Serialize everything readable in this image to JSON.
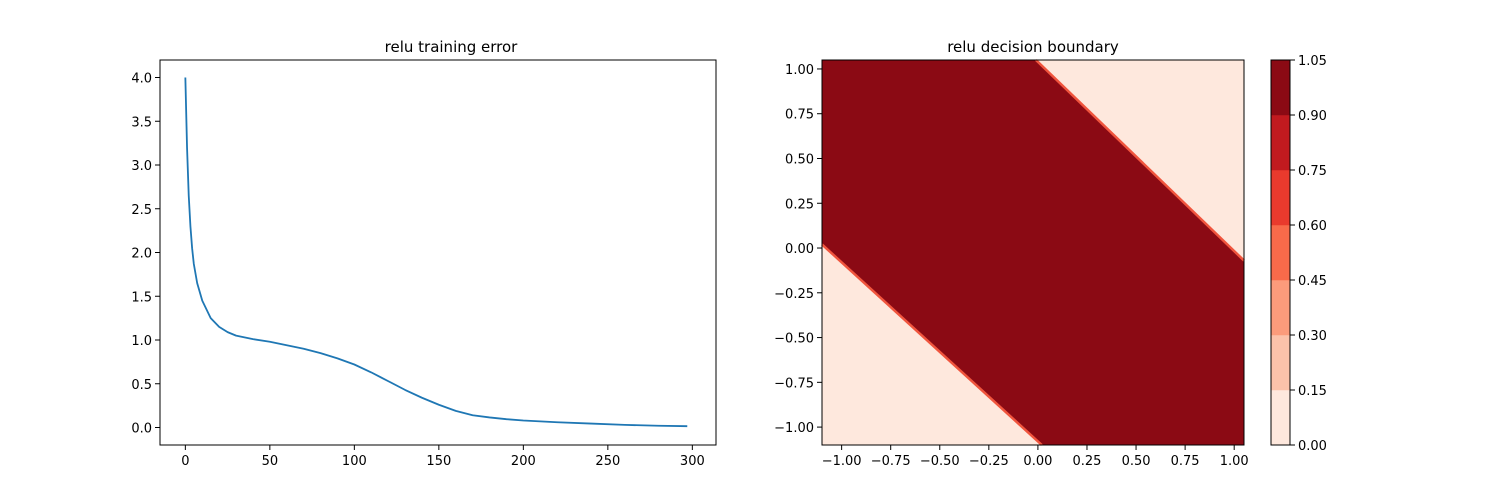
{
  "chart_data": [
    {
      "type": "line",
      "title": "relu training error",
      "xlabel": "",
      "ylabel": "",
      "xlim": [
        -15,
        314
      ],
      "ylim": [
        -0.2,
        4.2
      ],
      "xticks": [
        0,
        50,
        100,
        150,
        200,
        250,
        300
      ],
      "xtick_labels": [
        "0",
        "50",
        "100",
        "150",
        "200",
        "250",
        "300"
      ],
      "yticks": [
        0.0,
        0.5,
        1.0,
        1.5,
        2.0,
        2.5,
        3.0,
        3.5,
        4.0
      ],
      "ytick_labels": [
        "0.0",
        "0.5",
        "1.0",
        "1.5",
        "2.0",
        "2.5",
        "3.0",
        "3.5",
        "4.0"
      ],
      "grid": false,
      "series": [
        {
          "color": "#1f77b4",
          "x": [
            0,
            1,
            2,
            3,
            4,
            5,
            7,
            10,
            15,
            20,
            25,
            30,
            35,
            40,
            50,
            60,
            70,
            80,
            90,
            100,
            110,
            120,
            130,
            140,
            150,
            160,
            170,
            180,
            190,
            200,
            220,
            240,
            260,
            280,
            297
          ],
          "y": [
            4.0,
            3.2,
            2.65,
            2.3,
            2.05,
            1.87,
            1.65,
            1.45,
            1.25,
            1.15,
            1.09,
            1.05,
            1.03,
            1.01,
            0.98,
            0.94,
            0.9,
            0.85,
            0.79,
            0.72,
            0.63,
            0.53,
            0.43,
            0.34,
            0.26,
            0.19,
            0.14,
            0.115,
            0.095,
            0.08,
            0.06,
            0.045,
            0.03,
            0.02,
            0.015
          ]
        }
      ]
    },
    {
      "type": "heatmap",
      "title": "relu decision boundary",
      "xlabel": "",
      "ylabel": "",
      "xlim": [
        -1.1,
        1.05
      ],
      "ylim": [
        -1.1,
        1.05
      ],
      "xticks": [
        -1.0,
        -0.75,
        -0.5,
        -0.25,
        0.0,
        0.25,
        0.5,
        0.75,
        1.0
      ],
      "xtick_labels": [
        "−1.00",
        "−0.75",
        "−0.50",
        "−0.25",
        "0.00",
        "0.25",
        "0.50",
        "0.75",
        "1.00"
      ],
      "yticks": [
        -1.0,
        -0.75,
        -0.5,
        -0.25,
        0.0,
        0.25,
        0.5,
        0.75,
        1.0
      ],
      "ytick_labels": [
        "−1.00",
        "−0.75",
        "−0.50",
        "−0.25",
        "0.00",
        "0.25",
        "0.50",
        "0.75",
        "1.00"
      ],
      "regions": [
        {
          "name": "low-lower-left",
          "value": 0.0,
          "color": "#fee8dd",
          "polygon": [
            [
              -1.1,
              -1.1
            ],
            [
              -1.1,
              0.02
            ],
            [
              0.02,
              -1.1
            ]
          ]
        },
        {
          "name": "high-band",
          "value": 1.05,
          "color": "#8b0a14",
          "polygon": [
            [
              -1.1,
              0.02
            ],
            [
              -1.1,
              1.05
            ],
            [
              -0.01,
              1.05
            ],
            [
              1.05,
              -0.07
            ],
            [
              1.05,
              -1.1
            ],
            [
              0.02,
              -1.1
            ]
          ]
        },
        {
          "name": "low-upper-right",
          "value": 0.0,
          "color": "#fee8dd",
          "polygon": [
            [
              -0.01,
              1.05
            ],
            [
              1.05,
              1.05
            ],
            [
              1.05,
              -0.07
            ]
          ]
        }
      ],
      "boundaries": [
        {
          "from": [
            -1.1,
            0.02
          ],
          "to": [
            0.02,
            -1.1
          ],
          "color": "#f0553e"
        },
        {
          "from": [
            -0.01,
            1.05
          ],
          "to": [
            1.05,
            -0.07
          ],
          "color": "#f0553e"
        }
      ],
      "colorbar": {
        "levels": [
          0.0,
          0.15,
          0.3,
          0.45,
          0.6,
          0.75,
          0.9,
          1.05
        ],
        "labels": [
          "0.00",
          "0.15",
          "0.30",
          "0.45",
          "0.60",
          "0.75",
          "0.90",
          "1.05"
        ],
        "colors": [
          "#fee8dd",
          "#fcc2aa",
          "#fc9b7b",
          "#f86a4a",
          "#e93a2d",
          "#c11a1f",
          "#8b0a14"
        ]
      }
    }
  ]
}
